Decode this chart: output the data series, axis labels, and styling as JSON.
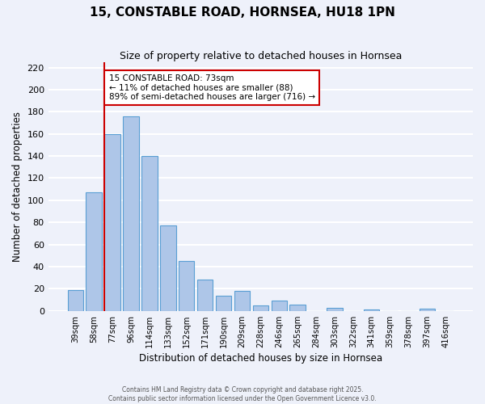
{
  "title": "15, CONSTABLE ROAD, HORNSEA, HU18 1PN",
  "subtitle": "Size of property relative to detached houses in Hornsea",
  "xlabel": "Distribution of detached houses by size in Hornsea",
  "ylabel": "Number of detached properties",
  "categories": [
    "39sqm",
    "58sqm",
    "77sqm",
    "96sqm",
    "114sqm",
    "133sqm",
    "152sqm",
    "171sqm",
    "190sqm",
    "209sqm",
    "228sqm",
    "246sqm",
    "265sqm",
    "284sqm",
    "303sqm",
    "322sqm",
    "341sqm",
    "359sqm",
    "378sqm",
    "397sqm",
    "416sqm"
  ],
  "values": [
    19,
    107,
    160,
    176,
    140,
    77,
    45,
    28,
    14,
    18,
    5,
    9,
    6,
    0,
    3,
    0,
    1,
    0,
    0,
    2,
    0
  ],
  "bar_color": "#aec6e8",
  "bar_edge_color": "#5a9fd4",
  "reference_line_index": 2,
  "reference_line_color": "#cc0000",
  "annotation_line1": "15 CONSTABLE ROAD: 73sqm",
  "annotation_line2": "← 11% of detached houses are smaller (88)",
  "annotation_line3": "89% of semi-detached houses are larger (716) →",
  "annotation_box_facecolor": "#ffffff",
  "annotation_box_edgecolor": "#cc0000",
  "ylim": [
    0,
    225
  ],
  "yticks": [
    0,
    20,
    40,
    60,
    80,
    100,
    120,
    140,
    160,
    180,
    200,
    220
  ],
  "background_color": "#eef1fa",
  "grid_color": "#ffffff",
  "footer1": "Contains HM Land Registry data © Crown copyright and database right 2025.",
  "footer2": "Contains public sector information licensed under the Open Government Licence v3.0."
}
